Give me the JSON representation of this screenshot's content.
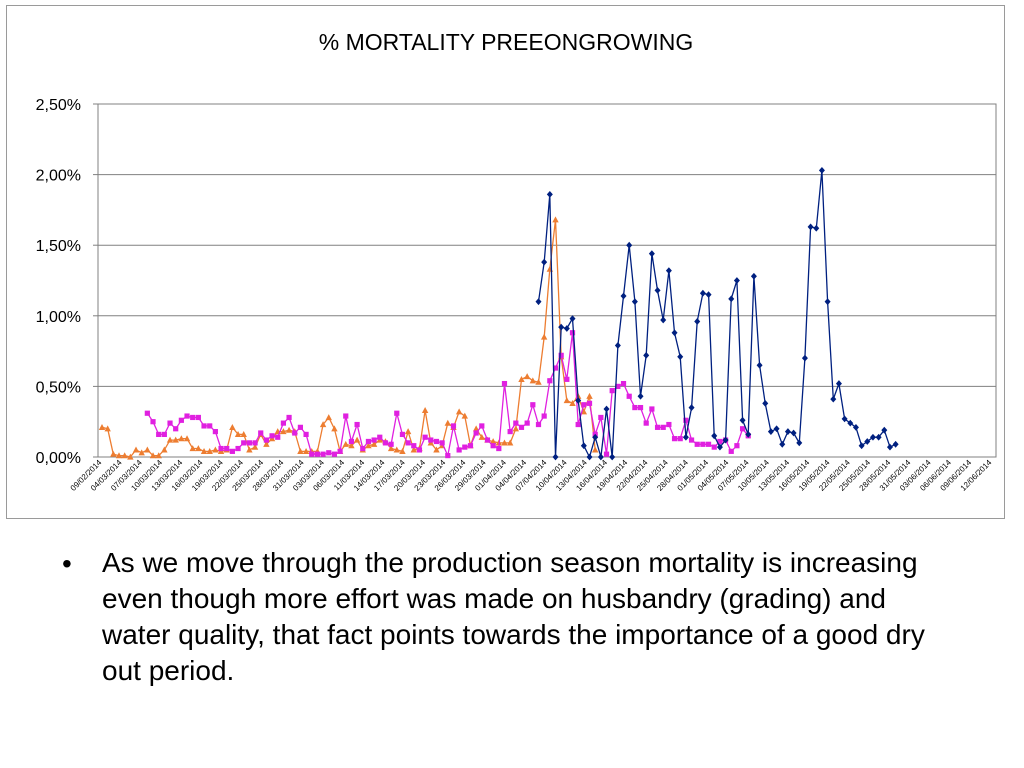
{
  "chart_data": {
    "type": "line",
    "title": "% MORTALITY PREEONGROWING",
    "ylim": [
      0,
      0.025
    ],
    "y_ticks": [
      "0,00%",
      "0,50%",
      "1,00%",
      "1,50%",
      "2,00%",
      "2,50%"
    ],
    "x_ticks": [
      "09/02/2014",
      "04/03/2014",
      "07/03/2014",
      "10/03/2014",
      "13/03/2014",
      "16/03/2014",
      "19/03/2014",
      "22/03/2014",
      "25/03/2014",
      "28/03/2014",
      "31/03/2014",
      "03/03/2014",
      "06/03/2014",
      "11/03/2014",
      "14/03/2014",
      "17/03/2014",
      "20/03/2014",
      "23/03/2014",
      "26/03/2014",
      "29/03/2014",
      "01/04/2014",
      "04/04/2014",
      "07/04/2014",
      "10/04/2014",
      "13/04/2014",
      "16/04/2014",
      "19/04/2014",
      "22/04/2014",
      "25/04/2014",
      "28/04/2014",
      "01/05/2014",
      "04/05/2014",
      "07/05/2014",
      "10/05/2014",
      "13/05/2014",
      "16/05/2014",
      "19/05/2014",
      "22/05/2014",
      "25/05/2014",
      "28/05/2014",
      "31/05/2014",
      "03/06/2014",
      "06/06/2014",
      "09/06/2014",
      "12/06/2014"
    ],
    "x_count": 158,
    "grid": "horizontal",
    "series": [
      {
        "color": "#ed7d31",
        "marker": "triangle",
        "start_index": 0,
        "values": [
          0.21,
          0.2,
          0.02,
          0.01,
          0.01,
          0.0,
          0.05,
          0.03,
          0.05,
          0.01,
          0.01,
          0.05,
          0.12,
          0.12,
          0.13,
          0.13,
          0.06,
          0.06,
          0.04,
          0.04,
          0.05,
          0.04,
          0.05,
          0.21,
          0.16,
          0.16,
          0.05,
          0.07,
          0.16,
          0.09,
          0.13,
          0.18,
          0.18,
          0.19,
          0.18,
          0.04,
          0.04,
          0.04,
          0.04,
          0.23,
          0.28,
          0.2,
          0.04,
          0.09,
          0.08,
          0.12,
          0.05,
          0.08,
          0.09,
          0.12,
          0.11,
          0.06,
          0.05,
          0.04,
          0.18,
          0.05,
          0.06,
          0.33,
          0.1,
          0.05,
          0.08,
          0.24,
          0.21,
          0.32,
          0.29,
          0.08,
          0.2,
          0.14,
          0.12,
          0.11,
          0.1,
          0.1,
          0.1,
          0.2,
          0.55,
          0.57,
          0.54,
          0.53,
          0.85,
          1.33,
          1.68,
          0.71,
          0.4,
          0.38,
          0.43,
          0.32,
          0.43,
          0.05
        ],
        "notes": "values in percent"
      },
      {
        "color": "#e020e0",
        "marker": "square",
        "start_index": 8,
        "values": [
          0.31,
          0.25,
          0.16,
          0.16,
          0.24,
          0.2,
          0.26,
          0.29,
          0.28,
          0.28,
          0.22,
          0.22,
          0.18,
          0.06,
          0.06,
          0.04,
          0.06,
          0.1,
          0.1,
          0.1,
          0.17,
          0.12,
          0.15,
          0.14,
          0.24,
          0.28,
          0.17,
          0.21,
          0.16,
          0.02,
          0.02,
          0.02,
          0.03,
          0.02,
          0.04,
          0.29,
          0.11,
          0.23,
          0.06,
          0.11,
          0.12,
          0.14,
          0.1,
          0.09,
          0.31,
          0.16,
          0.1,
          0.08,
          0.05,
          0.14,
          0.12,
          0.11,
          0.1,
          0.01,
          0.22,
          0.05,
          0.07,
          0.08,
          0.17,
          0.22,
          0.12,
          0.08,
          0.06,
          0.52,
          0.18,
          0.24,
          0.21,
          0.24,
          0.37,
          0.23,
          0.29,
          0.54,
          0.63,
          0.72,
          0.55,
          0.88,
          0.23,
          0.37,
          0.38,
          0.16,
          0.28,
          0.02,
          0.47,
          0.5,
          0.52,
          0.43,
          0.35,
          0.35,
          0.24,
          0.34,
          0.21,
          0.21,
          0.23,
          0.13,
          0.13,
          0.26,
          0.12,
          0.09,
          0.09,
          0.09,
          0.07,
          0.11,
          0.12,
          0.04,
          0.08,
          0.2,
          0.15
        ],
        "notes": "values in percent"
      },
      {
        "color": "#002080",
        "marker": "diamond",
        "start_index": 77,
        "values": [
          1.1,
          1.38,
          1.86,
          0.0,
          0.92,
          0.91,
          0.98,
          0.4,
          0.08,
          0.0,
          0.14,
          0.0,
          0.34,
          0.0,
          0.79,
          1.14,
          1.5,
          1.1,
          0.43,
          0.72,
          1.44,
          1.18,
          0.97,
          1.32,
          0.88,
          0.71,
          0.14,
          0.35,
          0.96,
          1.16,
          1.15,
          0.15,
          0.07,
          0.12,
          1.12,
          1.25,
          0.26,
          0.16,
          1.28,
          0.65,
          0.38,
          0.18,
          0.2,
          0.09,
          0.18,
          0.17,
          0.1,
          0.7,
          1.63,
          1.62,
          2.03,
          1.1,
          0.41,
          0.52,
          0.27,
          0.24,
          0.21,
          0.08,
          0.11,
          0.14,
          0.14,
          0.19,
          0.07,
          0.09
        ],
        "notes": "values in percent"
      }
    ]
  },
  "bullet": {
    "symbol": "•",
    "text": "As we move through the production season mortality is increasing even though more effort was made on husbandry (grading) and water quality, that fact points towards the importance of a good dry out period."
  }
}
